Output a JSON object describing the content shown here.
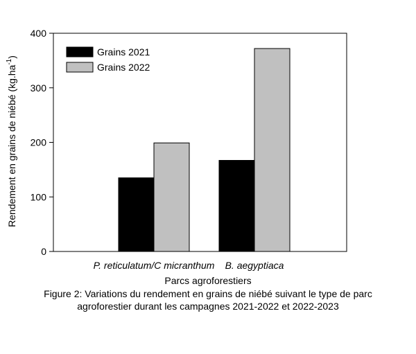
{
  "chart_data": {
    "type": "bar",
    "xlabel": "Parcs agroforestiers",
    "ylabel_main": "Rendement en grains de niébé (kg.ha",
    "ylabel_sup": "-1",
    "ylabel_end": ")",
    "categories": [
      "P. reticulatum/C micranthum",
      "B. aegyptiaca"
    ],
    "series": [
      {
        "name": "Grains 2021",
        "color": "#000000",
        "values": [
          135,
          167
        ]
      },
      {
        "name": "Grains 2022",
        "color": "#c0c0c0",
        "values": [
          199,
          372
        ]
      }
    ],
    "ylim": [
      0,
      400
    ],
    "yticks": [
      0,
      100,
      200,
      300,
      400
    ],
    "legend_position": "top-left",
    "grid": false
  },
  "caption": {
    "line1": "Figure 2: Variations du rendement en grains de niébé suivant le type de parc",
    "line2": "agroforestier durant les campagnes 2021-2022 et 2022-2023"
  }
}
